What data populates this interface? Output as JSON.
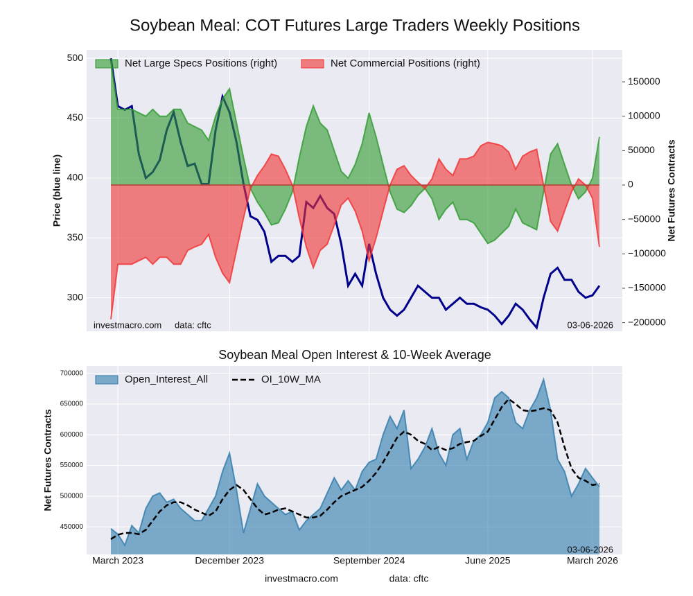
{
  "title": "Soybean Meal: COT Futures Large Traders Weekly Positions",
  "footer": {
    "site": "investmacro.com",
    "source": "data: cftc"
  },
  "chart_data": [
    {
      "type": "line",
      "ylabel": "Price (blue line)",
      "y2label": "Net Futures Contracts",
      "ylim": [
        272,
        507
      ],
      "yticks": [
        300,
        350,
        400,
        450,
        500
      ],
      "y2lim": [
        -212500,
        196400
      ],
      "y2ticks": [
        {
          "value": -200000,
          "label": "−200000"
        },
        {
          "value": -150000,
          "label": "−150000"
        },
        {
          "value": -100000,
          "label": "−100000"
        },
        {
          "value": -50000,
          "label": "−50000"
        },
        0,
        50000,
        100000,
        150000
      ],
      "grid": true,
      "legend": "upper left",
      "annotations": [
        "investmacro.com",
        "data: cftc",
        "03-06-2026"
      ],
      "categories": [
        null,
        null,
        null,
        null,
        null,
        null,
        null,
        null,
        null,
        null,
        null,
        null,
        null,
        null,
        null,
        null,
        null,
        null,
        null,
        null,
        null,
        null,
        null,
        null,
        null,
        null,
        null,
        null,
        null,
        null,
        null,
        null,
        null,
        null,
        null,
        null,
        null,
        null,
        null,
        null,
        null,
        null,
        null,
        null,
        null,
        null,
        null,
        null,
        null,
        null,
        null,
        null,
        null,
        null,
        null,
        null,
        null,
        null,
        null,
        null,
        null,
        null,
        null,
        null,
        null,
        null,
        null,
        null,
        null,
        null,
        null
      ],
      "series": [
        {
          "color": "#00008b",
          "values": [
            500,
            460,
            457,
            460,
            420,
            400,
            405,
            415,
            440,
            455,
            430,
            410,
            412,
            395,
            395,
            440,
            468,
            455,
            430,
            395,
            368,
            365,
            355,
            330,
            335,
            335,
            330,
            335,
            380,
            375,
            385,
            375,
            370,
            345,
            310,
            320,
            310,
            345,
            320,
            300,
            290,
            285,
            290,
            300,
            310,
            305,
            300,
            300,
            290,
            295,
            300,
            295,
            295,
            292,
            290,
            285,
            278,
            285,
            295,
            290,
            282,
            275,
            300,
            320,
            325,
            315,
            315,
            305,
            300,
            302,
            310
          ]
        },
        {
          "name": "Net Large Specs Positions (right)",
          "color": "#2e9a2e",
          "axis": "y2",
          "area": true,
          "values": [
            180000,
            110000,
            110000,
            110000,
            105000,
            100000,
            110000,
            100000,
            100000,
            110000,
            110000,
            90000,
            85000,
            80000,
            65000,
            100000,
            125000,
            140000,
            90000,
            40000,
            -5000,
            -25000,
            -40000,
            -58000,
            -55000,
            -35000,
            -10000,
            40000,
            85000,
            115000,
            90000,
            80000,
            50000,
            20000,
            10000,
            30000,
            60000,
            105000,
            70000,
            30000,
            -10000,
            -35000,
            -40000,
            -30000,
            -15000,
            -5000,
            -20000,
            -50000,
            -35000,
            -25000,
            -50000,
            -50000,
            -55000,
            -70000,
            -85000,
            -80000,
            -70000,
            -60000,
            -35000,
            -55000,
            -60000,
            -65000,
            -10000,
            45000,
            60000,
            30000,
            0,
            -20000,
            -10000,
            10000,
            70000
          ]
        },
        {
          "name": "Net Commercial Positions (right)",
          "color": "#f03030",
          "axis": "y2",
          "area": true,
          "values": [
            -195000,
            -115000,
            -115000,
            -115000,
            -110000,
            -105000,
            -115000,
            -105000,
            -105000,
            -115000,
            -115000,
            -95000,
            -90000,
            -86000,
            -72000,
            -105000,
            -128000,
            -142000,
            -95000,
            -48000,
            -5000,
            14000,
            28000,
            45000,
            42000,
            23000,
            0,
            -48000,
            -90000,
            -120000,
            -95000,
            -86000,
            -58000,
            -29000,
            -19000,
            -38000,
            -67000,
            -110000,
            -77000,
            -38000,
            0,
            23000,
            28000,
            14000,
            4000,
            -5000,
            9000,
            38000,
            23000,
            14000,
            38000,
            38000,
            42000,
            57000,
            62000,
            60000,
            57000,
            48000,
            23000,
            42000,
            48000,
            52000,
            0,
            -53000,
            -67000,
            -38000,
            -10000,
            9000,
            0,
            -19000,
            -90000
          ]
        }
      ]
    },
    {
      "type": "area",
      "title": "Soybean Meal Open Interest & 10-Week Average",
      "ylabel": "Net Futures Contracts",
      "ylim": [
        405000,
        712000
      ],
      "yticks": [
        450000,
        500000,
        550000,
        600000,
        650000,
        700000
      ],
      "grid": true,
      "legend": "upper left",
      "annotations": [
        "03-06-2026"
      ],
      "categories": [
        null,
        "March 2023",
        null,
        null,
        null,
        null,
        null,
        null,
        null,
        null,
        null,
        null,
        null,
        null,
        null,
        null,
        null,
        "December 2023",
        null,
        null,
        null,
        null,
        null,
        null,
        null,
        null,
        null,
        null,
        null,
        null,
        null,
        null,
        null,
        null,
        null,
        null,
        null,
        "September 2024",
        null,
        null,
        null,
        null,
        null,
        null,
        null,
        null,
        null,
        null,
        null,
        null,
        null,
        null,
        null,
        null,
        "June 2025",
        null,
        null,
        null,
        null,
        null,
        null,
        null,
        null,
        null,
        null,
        null,
        null,
        null,
        null,
        "March 2026",
        null
      ],
      "series": [
        {
          "name": "Open_Interest_All",
          "color": "#2e7bab",
          "area": true,
          "values": [
            447000,
            438000,
            420000,
            452000,
            440000,
            480000,
            500000,
            505000,
            490000,
            495000,
            480000,
            470000,
            460000,
            460000,
            480000,
            500000,
            540000,
            570000,
            510000,
            440000,
            480000,
            520000,
            500000,
            490000,
            480000,
            470000,
            475000,
            445000,
            460000,
            470000,
            480000,
            505000,
            530000,
            510000,
            525000,
            510000,
            540000,
            555000,
            560000,
            600000,
            630000,
            610000,
            640000,
            545000,
            560000,
            580000,
            610000,
            570000,
            550000,
            600000,
            610000,
            560000,
            590000,
            600000,
            620000,
            660000,
            670000,
            660000,
            620000,
            610000,
            640000,
            660000,
            690000,
            640000,
            560000,
            540000,
            500000,
            520000,
            545000,
            530000,
            515000
          ]
        },
        {
          "name": "OI_10W_MA",
          "color": "#000000",
          "dash": true,
          "values": [
            430000,
            437000,
            440000,
            440000,
            438000,
            445000,
            460000,
            475000,
            485000,
            490000,
            490000,
            485000,
            478000,
            473000,
            468000,
            475000,
            495000,
            510000,
            518000,
            510000,
            495000,
            480000,
            470000,
            473000,
            478000,
            480000,
            475000,
            470000,
            465000,
            465000,
            468000,
            478000,
            490000,
            500000,
            505000,
            510000,
            515000,
            525000,
            538000,
            555000,
            575000,
            595000,
            605000,
            600000,
            590000,
            585000,
            575000,
            580000,
            575000,
            578000,
            585000,
            588000,
            590000,
            598000,
            605000,
            625000,
            645000,
            658000,
            650000,
            640000,
            638000,
            640000,
            643000,
            640000,
            620000,
            580000,
            545000,
            530000,
            525000,
            518000,
            520000
          ]
        }
      ]
    }
  ]
}
